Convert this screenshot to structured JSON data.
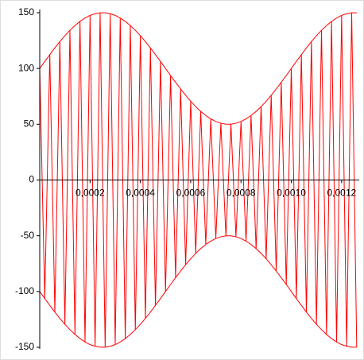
{
  "chart_data": {
    "type": "line",
    "x": [
      0,
      2e-05,
      4e-05,
      6e-05,
      8e-05,
      0.0001,
      0.00012,
      0.00014,
      0.00016,
      0.00018,
      0.0002,
      0.00022,
      0.00024,
      0.00026,
      0.00028,
      0.0003,
      0.00032,
      0.00034,
      0.00036,
      0.00038,
      0.0004,
      0.00042,
      0.00044,
      0.00046,
      0.00048,
      0.0005,
      0.00052,
      0.00054,
      0.00056,
      0.00058,
      0.0006,
      0.00062,
      0.00064,
      0.00066,
      0.00068,
      0.0007,
      0.00072,
      0.00074,
      0.00076,
      0.00078,
      0.0008,
      0.00082,
      0.00084,
      0.00086,
      0.00088,
      0.0009,
      0.00092,
      0.00094,
      0.00096,
      0.00098,
      0.001,
      0.00102,
      0.00104,
      0.00106,
      0.00108,
      0.0011,
      0.00112,
      0.00114,
      0.00116,
      0.00118,
      0.0012,
      0.00122,
      0.00124,
      0.00126
    ],
    "series": [
      {
        "color": "#ff0000",
        "values": [
          100,
          -106.3,
          112.4,
          -118.4,
          124.1,
          -129.4,
          134.2,
          -138.5,
          142.2,
          -145.2,
          147.6,
          -149.1,
          149.9,
          -149.9,
          149.1,
          -147.6,
          145.2,
          -142.2,
          138.5,
          -134.2,
          129.4,
          -124.1,
          118.4,
          -112.4,
          106.3,
          -100,
          93.7,
          -87.6,
          81.6,
          -75.9,
          70.6,
          -65.8,
          61.5,
          -57.8,
          54.8,
          -52.4,
          50.9,
          -50.1,
          50.1,
          -50.9,
          52.4,
          -54.8,
          57.8,
          -61.5,
          65.8,
          -70.6,
          75.9,
          -81.6,
          87.6,
          -93.7,
          100,
          -106.3,
          112.4,
          -118.4,
          124.1,
          -129.4,
          134.2,
          -138.5,
          142.2,
          -145.2,
          147.6,
          -149.1,
          149.9,
          -149.9
        ]
      },
      {
        "color": "#ff0000",
        "values": [
          100,
          106.3,
          112.4,
          118.4,
          124.1,
          129.4,
          134.2,
          138.5,
          142.2,
          145.2,
          147.6,
          149.1,
          149.9,
          149.9,
          149.1,
          147.6,
          145.2,
          142.2,
          138.5,
          134.2,
          129.4,
          124.1,
          118.4,
          112.4,
          106.3,
          100,
          93.7,
          87.6,
          81.6,
          75.9,
          70.6,
          65.8,
          61.5,
          57.8,
          54.8,
          52.4,
          50.9,
          50.1,
          50.1,
          50.9,
          52.4,
          54.8,
          57.8,
          61.5,
          65.8,
          70.6,
          75.9,
          81.6,
          87.6,
          93.7,
          100,
          106.3,
          112.4,
          118.4,
          124.1,
          129.4,
          134.2,
          138.5,
          142.2,
          145.2,
          147.6,
          149.1,
          149.9,
          149.9
        ]
      },
      {
        "color": "#ff0000",
        "values": [
          -100,
          -106.3,
          -112.4,
          -118.4,
          -124.1,
          -129.4,
          -134.2,
          -138.5,
          -142.2,
          -145.2,
          -147.6,
          -149.1,
          -149.9,
          -149.9,
          -149.1,
          -147.6,
          -145.2,
          -142.2,
          -138.5,
          -134.2,
          -129.4,
          -124.1,
          -118.4,
          -112.4,
          -106.3,
          -100,
          -93.7,
          -87.6,
          -81.6,
          -75.9,
          -70.6,
          -65.8,
          -61.5,
          -57.8,
          -54.8,
          -52.4,
          -50.9,
          -50.1,
          -50.1,
          -50.9,
          -52.4,
          -54.8,
          -57.8,
          -61.5,
          -65.8,
          -70.6,
          -75.9,
          -81.6,
          -87.6,
          -93.7,
          -100,
          -106.3,
          -112.4,
          -118.4,
          -124.1,
          -129.4,
          -134.2,
          -138.5,
          -142.2,
          -145.2,
          -147.6,
          -149.1,
          -149.9,
          -149.9
        ]
      }
    ],
    "xlim": [
      0,
      0.00127
    ],
    "xticks": [
      {
        "value": 0.0002,
        "label": "0,0002"
      },
      {
        "value": 0.0004,
        "label": "0,0004"
      },
      {
        "value": 0.0006,
        "label": "0,0006"
      },
      {
        "value": 0.0008,
        "label": "0,0008"
      },
      {
        "value": 0.001,
        "label": "0,0010"
      },
      {
        "value": 0.0012,
        "label": "0,0012"
      }
    ],
    "ylim": [
      -150,
      150
    ],
    "yticks": [
      -150,
      -100,
      -50,
      0,
      50,
      100,
      150
    ]
  }
}
